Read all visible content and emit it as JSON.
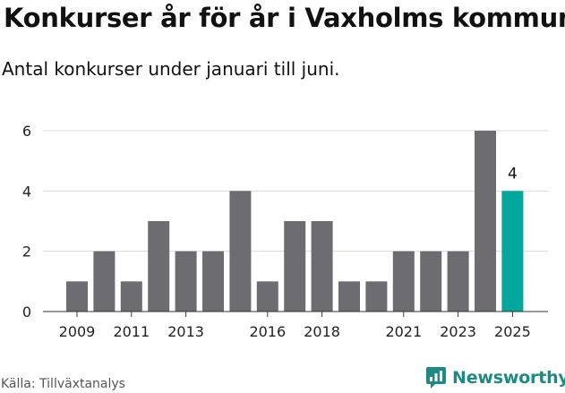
{
  "header": {
    "title": "Konkurser år för år i Vaxholms kommun",
    "subtitle": "Antal konkurser under januari till juni."
  },
  "footer": {
    "source": "Källa: Tillväxtanalys",
    "brand": "Newsworthy"
  },
  "colors": {
    "bar": "#6d6d71",
    "highlight": "#00a79a",
    "brand": "#1f8a82",
    "grid": "#d9d9d9"
  },
  "chart_data": {
    "type": "bar",
    "categories": [
      "2009",
      "2010",
      "2011",
      "2012",
      "2013",
      "2014",
      "2015",
      "2016",
      "2017",
      "2018",
      "2019",
      "2020",
      "2021",
      "2022",
      "2023",
      "2024",
      "2025"
    ],
    "values": [
      1,
      2,
      1,
      3,
      2,
      2,
      4,
      1,
      3,
      3,
      1,
      1,
      2,
      2,
      2,
      6,
      4
    ],
    "x_tick_labels": [
      "2009",
      "2011",
      "2013",
      "2016",
      "2018",
      "2021",
      "2023",
      "2025"
    ],
    "y_ticks": [
      0,
      2,
      4,
      6
    ],
    "ylim": [
      0,
      6
    ],
    "highlight_category": "2025",
    "highlight_label": "4",
    "grid": true,
    "legend": "none"
  }
}
